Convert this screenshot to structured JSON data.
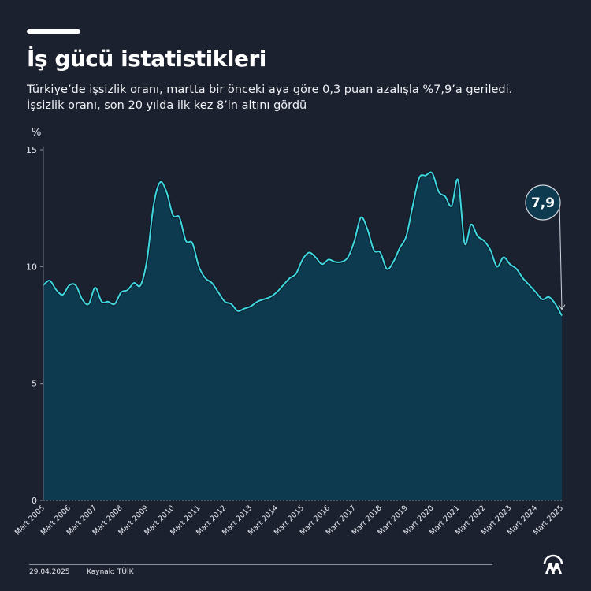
{
  "header": {
    "title": "İş gücü istatistikleri",
    "subtitle_lines": [
      "Türkiye’de işsizlik oranı, martta bir önceki aya göre 0,3 puan azalışla %7,9’a geriledi.",
      "İşsizlik oranı, son 20 yılda ilk kez 8’in altını gördü"
    ]
  },
  "footer": {
    "date": "29.04.2025",
    "source": "Kaynak: TÜİK",
    "logo": "aa-logo-icon"
  },
  "colors": {
    "background": "#1c2130",
    "line": "#3fd6df",
    "area": "#0e3a50",
    "text": "#ffffff",
    "axis": "#8a8f9c"
  },
  "chart_data": {
    "type": "area",
    "title": "İş gücü istatistikleri",
    "xlabel": "",
    "ylabel": "%",
    "ylim": [
      0,
      15
    ],
    "yticks": [
      0,
      5,
      10,
      15
    ],
    "ytick_labels": [
      "0",
      "5",
      "10",
      "15"
    ],
    "grid": false,
    "xtick_labels": [
      "Mart 2005",
      "Mart 2006",
      "Mart 2007",
      "Mart 2008",
      "Mart 2009",
      "Mart 2010",
      "Mart 2011",
      "Mart 2012",
      "Mart 2013",
      "Mart 2014",
      "Mart 2015",
      "Mart 2016",
      "Mart 2017",
      "Mart 2018",
      "Mart 2019",
      "Mart 2020",
      "Mart 2021",
      "Mart 2022",
      "Mart 2023",
      "Mart 2024",
      "Mart 2025"
    ],
    "x_start": "2005-03",
    "x_end": "2025-03",
    "frequency": "quarterly-sampled monthly series (every 3 months)",
    "series": [
      {
        "name": "İşsizlik oranı",
        "values": [
          9.2,
          9.4,
          9.0,
          8.8,
          9.2,
          9.2,
          8.6,
          8.4,
          9.1,
          8.5,
          8.5,
          8.4,
          8.9,
          9.0,
          9.3,
          9.2,
          10.3,
          12.6,
          13.6,
          13.2,
          12.2,
          12.1,
          11.1,
          11.0,
          10.0,
          9.5,
          9.3,
          8.9,
          8.5,
          8.4,
          8.1,
          8.2,
          8.3,
          8.5,
          8.6,
          8.7,
          8.9,
          9.2,
          9.5,
          9.7,
          10.3,
          10.6,
          10.4,
          10.1,
          10.3,
          10.2,
          10.2,
          10.4,
          11.1,
          12.1,
          11.6,
          10.7,
          10.6,
          9.9,
          10.2,
          10.8,
          11.3,
          12.6,
          13.8,
          13.9,
          14.0,
          13.2,
          13.0,
          12.6,
          13.7,
          11.0,
          11.8,
          11.3,
          11.1,
          10.7,
          10.0,
          10.4,
          10.1,
          9.9,
          9.5,
          9.2,
          8.9,
          8.6,
          8.7,
          8.4,
          7.9
        ]
      }
    ],
    "annotations": [
      {
        "label": "7,9",
        "target": "Mart 2025",
        "value": 7.9
      }
    ]
  }
}
